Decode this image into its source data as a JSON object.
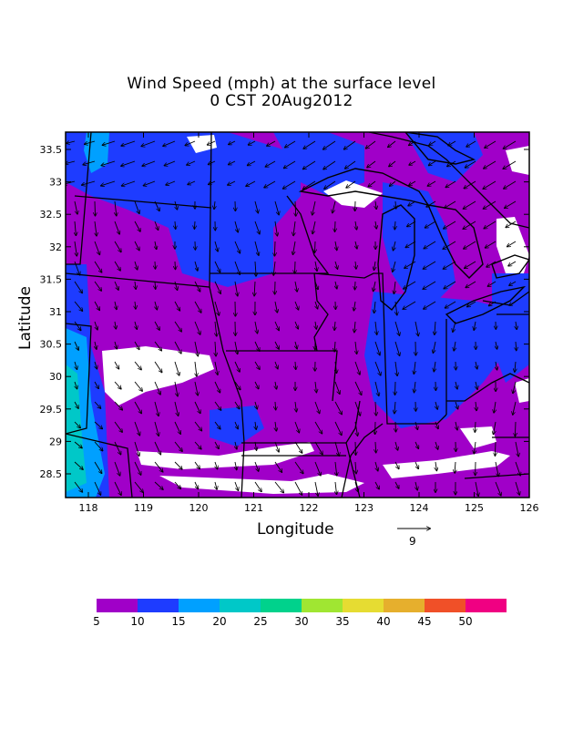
{
  "title": {
    "line1": "Wind Speed (mph) at the surface level",
    "line2": "0 CST 20Aug2012"
  },
  "axes": {
    "xlabel": "Longitude",
    "ylabel": "Latitude",
    "x_ticks": [
      "118",
      "119",
      "120",
      "121",
      "122",
      "123",
      "124",
      "125",
      "126"
    ],
    "y_ticks": [
      "33.5",
      "33",
      "32.5",
      "32",
      "31.5",
      "31",
      "30.5",
      "30",
      "29.5",
      "29",
      "28.5"
    ]
  },
  "reference_vector": {
    "label": "9"
  },
  "colorbar": {
    "labels": [
      "5",
      "10",
      "15",
      "20",
      "25",
      "30",
      "35",
      "40",
      "45",
      "50"
    ],
    "colors": [
      "#a000c8",
      "#1e3cff",
      "#00a0ff",
      "#00c8c8",
      "#00d28c",
      "#a0e632",
      "#e6dc32",
      "#e6af2d",
      "#f05028",
      "#f00082"
    ]
  },
  "field_colors": {
    "purple": "#a000c8",
    "blue": "#1e3cff",
    "cyan": "#00a0ff",
    "teal": "#00c8c8",
    "white": "#ffffff"
  }
}
